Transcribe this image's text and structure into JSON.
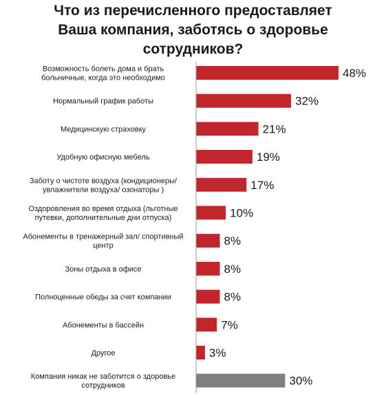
{
  "chart_data": {
    "type": "bar",
    "orientation": "horizontal",
    "title": "Что из перечисленного предоставляет Ваша компания, заботясь о здоровье сотрудников?",
    "title_lines": [
      "Что из перечисленного предоставляет",
      "Ваша компания, заботясь о здоровье",
      "сотрудников?"
    ],
    "categories": [
      "Возможность болеть дома и брать больничные, когда это необходимо",
      "Нормальный график работы",
      "Медицинскую страховку",
      "Удобную офисную мебель",
      "Заботу о чистоте воздуха (кондиционеры/ увлажнители воздуха/ озонаторы )",
      "Оздоровления во время отдыха (льготные путевки, дополнительные дни отпуска)",
      "Абонементы в тренажерный зал/ спортивный центр",
      "Зоны отдыха в офисе",
      "Полноценные обеды за счет компании",
      "Абонементы в бассейн",
      "Другое",
      "Компания никак не заботится о здоровье сотрудников"
    ],
    "category_lines": [
      [
        "Возможность болеть дома и брать",
        "больничные, когда это необходимо"
      ],
      [
        "Нормальный график работы"
      ],
      [
        "Медицинскую страховку"
      ],
      [
        "Удобную офисную мебель"
      ],
      [
        "Заботу о чистоте воздуха (кондиционеры/",
        "увлажнители воздуха/ озонаторы )"
      ],
      [
        "Оздоровления во время отдыха (льготные",
        "путевки, дополнительные дни отпуска)"
      ],
      [
        "Абонементы в тренажерный зал/ спортивный",
        "центр"
      ],
      [
        "Зоны отдыха в офисе"
      ],
      [
        "Полноценные обеды за счет компании"
      ],
      [
        "Абонементы в бассейн"
      ],
      [
        "Другое"
      ],
      [
        "Компания никак не заботится о здоровье",
        "сотрудников"
      ]
    ],
    "values": [
      48,
      32,
      21,
      19,
      17,
      10,
      8,
      8,
      8,
      7,
      3,
      30
    ],
    "value_labels": [
      "48%",
      "32%",
      "21%",
      "19%",
      "17%",
      "10%",
      "8%",
      "8%",
      "8%",
      "7%",
      "3%",
      "30%"
    ],
    "unit": "%",
    "bar_colors": [
      "#c0262c",
      "#c0262c",
      "#c0262c",
      "#c0262c",
      "#c0262c",
      "#c0262c",
      "#c0262c",
      "#c0262c",
      "#c0262c",
      "#c0262c",
      "#c0262c",
      "#7f7f7f"
    ],
    "xlim": [
      0,
      48
    ],
    "grid": false,
    "legend": "none"
  }
}
